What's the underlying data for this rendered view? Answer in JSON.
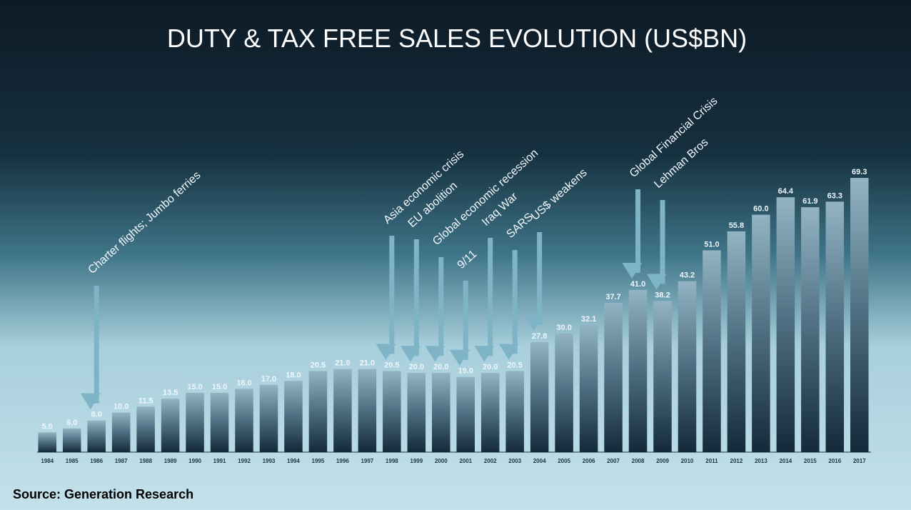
{
  "chart_data": {
    "type": "bar",
    "title": "DUTY & TAX FREE SALES EVOLUTION (US$BN)",
    "source": "Source: Generation Research",
    "categories": [
      "1984",
      "1985",
      "1986",
      "1987",
      "1988",
      "1989",
      "1990",
      "1991",
      "1992",
      "1993",
      "1994",
      "1995",
      "1996",
      "1997",
      "1998",
      "1999",
      "2000",
      "2001",
      "2002",
      "2003",
      "2004",
      "2005",
      "2006",
      "2007",
      "2008",
      "2009",
      "2010",
      "2011",
      "2012",
      "2013",
      "2014",
      "2015",
      "2016",
      "2017"
    ],
    "values": [
      5.0,
      6.0,
      8.0,
      10.0,
      11.5,
      13.5,
      15.0,
      15.0,
      16.0,
      17.0,
      18.0,
      20.5,
      21.0,
      21.0,
      20.5,
      20.0,
      20.0,
      19.0,
      20.0,
      20.5,
      27.8,
      30.0,
      32.1,
      37.7,
      41.0,
      38.2,
      43.2,
      51.0,
      55.8,
      60.0,
      64.4,
      61.9,
      63.3,
      69.3
    ],
    "value_labels": [
      "5.0",
      "6.0",
      "8.0",
      "10.0",
      "11.5",
      "13.5",
      "15.0",
      "15.0",
      "16.0",
      "17.0",
      "18.0",
      "20.5",
      "21.0",
      "21.0",
      "20.5",
      "20.0",
      "20.0",
      "19.0",
      "20.0",
      "20.5",
      "27.8",
      "30.0",
      "32.1",
      "37.7",
      "41.0",
      "38.2",
      "43.2",
      "51.0",
      "55.8",
      "60.0",
      "64.4",
      "61.9",
      "63.3",
      "69.3"
    ],
    "annotations": [
      {
        "text": "Charter flights; Jumbo ferries",
        "x": "1986"
      },
      {
        "text": "Asia economic crisis",
        "x": "1998"
      },
      {
        "text": "EU abolition",
        "x": "1999"
      },
      {
        "text": "Global economic recession",
        "x": "2000"
      },
      {
        "text": "9/11",
        "x": "2001"
      },
      {
        "text": "Iraq War",
        "x": "2002"
      },
      {
        "text": "SARS",
        "x": "2003"
      },
      {
        "text": "US$ weakens",
        "x": "2004"
      },
      {
        "text": "Global Financial Crisis",
        "x": "2008"
      },
      {
        "text": "Lehman Bros",
        "x": "2009"
      }
    ]
  }
}
